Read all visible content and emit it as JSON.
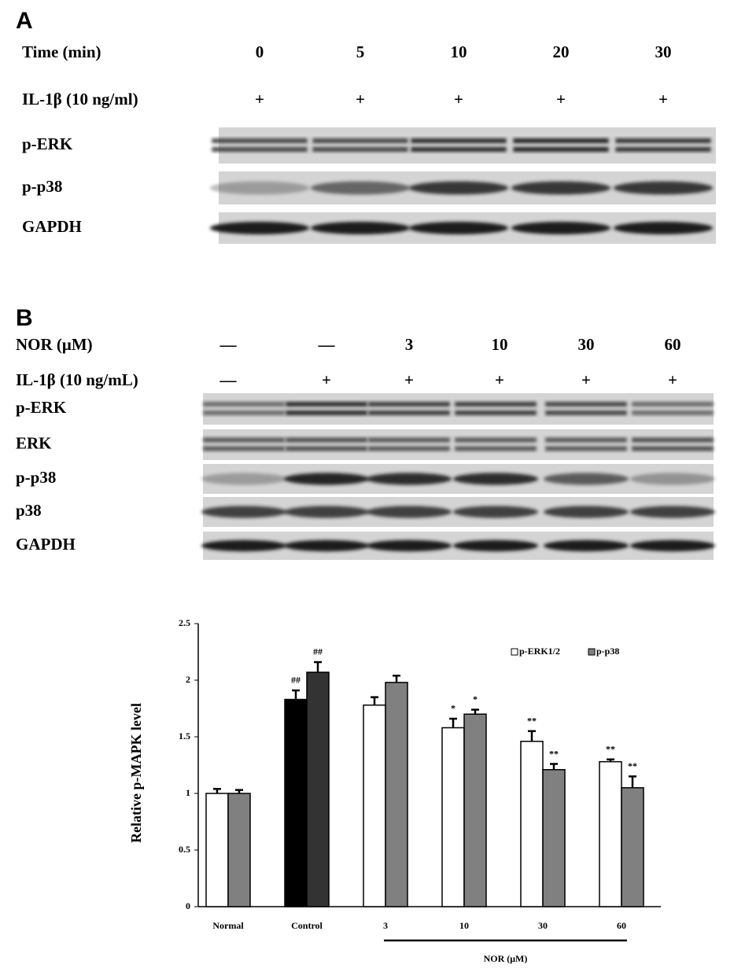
{
  "panel_a": {
    "label": "A",
    "time_header": "Time (min)",
    "times": [
      "0",
      "5",
      "10",
      "20",
      "30"
    ],
    "il_header": "IL-1β (10 ng/ml)",
    "il": [
      "+",
      "+",
      "+",
      "+",
      "+"
    ],
    "blots": [
      "p-ERK",
      "p-p38",
      "GAPDH"
    ]
  },
  "panel_b": {
    "label": "B",
    "nor_header": "NOR (μM)",
    "nor": [
      "—",
      "—",
      "3",
      "10",
      "30",
      "60"
    ],
    "il_header": "IL-1β (10 ng/mL)",
    "il": [
      "—",
      "+",
      "+",
      "+",
      "+",
      "+"
    ],
    "blots": [
      "p-ERK",
      "ERK",
      "p-p38",
      "p38",
      "GAPDH"
    ]
  },
  "chart_data": {
    "type": "bar",
    "y_label": "Relative p-MAPK level",
    "x_group_label": "NOR (μM)",
    "categories": [
      "Normal",
      "Control",
      "3",
      "10",
      "30",
      "60"
    ],
    "series": [
      {
        "name": "p-ERK1/2",
        "color": "#ffffff",
        "colors": [
          "#ffffff",
          "#000000",
          "#ffffff",
          "#ffffff",
          "#ffffff",
          "#ffffff"
        ],
        "values": [
          1.0,
          1.83,
          1.78,
          1.58,
          1.46,
          1.28
        ],
        "errors": [
          0.04,
          0.08,
          0.07,
          0.08,
          0.09,
          0.02
        ],
        "annotations": [
          null,
          "##",
          null,
          "*",
          "**",
          "**"
        ]
      },
      {
        "name": "p-p38",
        "color": "#808080",
        "colors": [
          "#808080",
          "#333333",
          "#808080",
          "#808080",
          "#808080",
          "#808080"
        ],
        "values": [
          1.0,
          2.07,
          1.98,
          1.7,
          1.21,
          1.05
        ],
        "errors": [
          0.03,
          0.09,
          0.06,
          0.04,
          0.05,
          0.1
        ],
        "annotations": [
          null,
          "##",
          null,
          "*",
          "**",
          "**"
        ]
      }
    ],
    "ylim": [
      0,
      2.5
    ],
    "yticks": [
      0,
      0.5,
      1,
      1.5,
      2,
      2.5
    ],
    "legend": "top-right"
  }
}
